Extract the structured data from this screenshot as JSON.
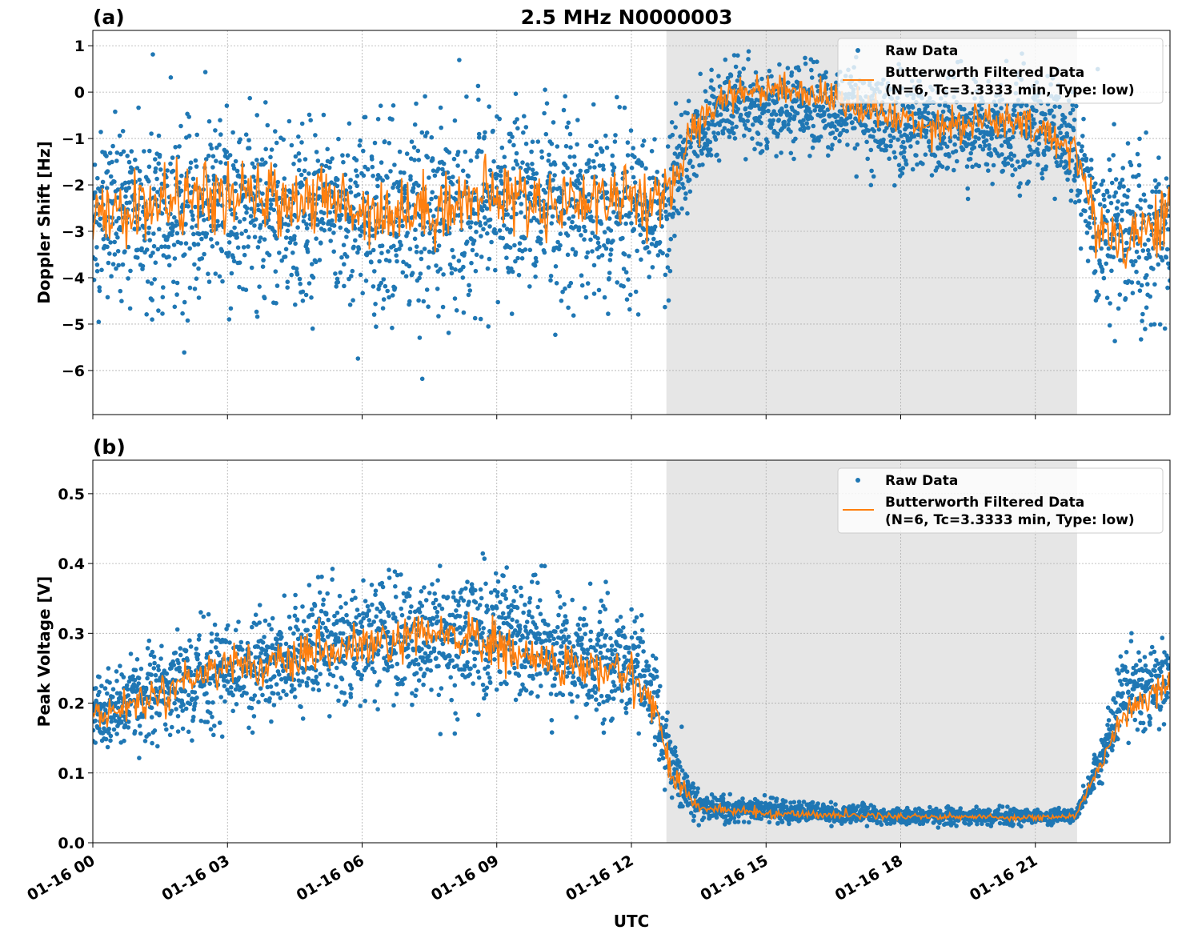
{
  "figure": {
    "title": "2.5 MHz N0000003",
    "xlabel": "UTC",
    "x_tick_labels": [
      "01-16 00",
      "01-16 03",
      "01-16 06",
      "01-16 09",
      "01-16 12",
      "01-16 15",
      "01-16 18",
      "01-16 21"
    ],
    "x_tick_hours": [
      0,
      3,
      6,
      9,
      12,
      15,
      18,
      21
    ],
    "xlim_hours": [
      0,
      24
    ],
    "shaded_interval_hours": [
      12.78,
      21.93
    ],
    "colors": {
      "raw": "#1f77b4",
      "filtered": "#ff7f0e",
      "shade": "#e6e6e6"
    }
  },
  "chart_data": [
    {
      "type": "scatter",
      "panel_label": "(a)",
      "ylabel": "Doppler Shift [Hz]",
      "ylim": [
        -6.95,
        1.33
      ],
      "y_ticks": [
        1,
        0,
        -1,
        -2,
        -3,
        -4,
        -5,
        -6
      ],
      "y_tick_labels": [
        "1",
        "0",
        "−1",
        "−2",
        "−3",
        "−4",
        "−5",
        "−6"
      ],
      "grid": true,
      "legend_placement": "top-right",
      "legend": [
        "Raw Data",
        "Butterworth Filtered Data",
        "(N=6, Tc=3.3333 min, Type: low)"
      ],
      "series": [
        {
          "name": "Butterworth Filtered Data",
          "x_hours": [
            0,
            1,
            2,
            3,
            4,
            5,
            6,
            7,
            8,
            9,
            10,
            11,
            12,
            12.75,
            13.25,
            14,
            15,
            16,
            17,
            18,
            19,
            20,
            21,
            21.9,
            22.3,
            23,
            24
          ],
          "values": [
            -2.8,
            -2.5,
            -2.3,
            -2.3,
            -2.3,
            -2.3,
            -2.5,
            -2.6,
            -2.4,
            -2.2,
            -2.4,
            -2.3,
            -2.2,
            -2.5,
            -1.0,
            -0.1,
            0.1,
            0.0,
            -0.3,
            -0.6,
            -0.7,
            -0.6,
            -0.8,
            -1.2,
            -2.8,
            -3.2,
            -2.6
          ]
        },
        {
          "name": "Raw Data",
          "x_hours": [
            0,
            3,
            6,
            9,
            12,
            12.75,
            13.25,
            14,
            17,
            18,
            21,
            21.9,
            22.3,
            24
          ],
          "upper": [
            -0.7,
            -0.5,
            -0.6,
            -0.3,
            -0.6,
            -0.6,
            0.2,
            0.6,
            0.7,
            0.4,
            0.4,
            0.0,
            -1.2,
            -1.0
          ],
          "lower": [
            -4.6,
            -4.6,
            -4.8,
            -4.6,
            -4.4,
            -4.4,
            -2.5,
            -1.3,
            -1.4,
            -2.0,
            -2.0,
            -2.5,
            -4.8,
            -5.2
          ]
        }
      ]
    },
    {
      "type": "scatter",
      "panel_label": "(b)",
      "ylabel": "Peak Voltage [V]",
      "ylim": [
        0,
        0.548
      ],
      "y_ticks": [
        0,
        0.1,
        0.2,
        0.3,
        0.4,
        0.5
      ],
      "y_tick_labels": [
        "0.0",
        "0.1",
        "0.2",
        "0.3",
        "0.4",
        "0.5"
      ],
      "grid": true,
      "legend_placement": "top-right",
      "legend": [
        "Raw Data",
        "Butterworth Filtered Data",
        "(N=6, Tc=3.3333 min, Type: low)"
      ],
      "series": [
        {
          "name": "Butterworth Filtered Data",
          "x_hours": [
            0,
            1,
            2,
            3,
            4,
            5,
            6,
            7,
            8,
            9,
            10,
            11,
            12,
            12.5,
            12.9,
            13.5,
            15,
            18,
            21,
            21.9,
            22.5,
            23,
            24
          ],
          "values": [
            0.18,
            0.2,
            0.23,
            0.26,
            0.25,
            0.27,
            0.28,
            0.29,
            0.3,
            0.28,
            0.26,
            0.25,
            0.24,
            0.2,
            0.1,
            0.05,
            0.042,
            0.038,
            0.036,
            0.038,
            0.12,
            0.19,
            0.23
          ]
        },
        {
          "name": "Raw Data",
          "x_hours": [
            0,
            3,
            6,
            9,
            12,
            12.5,
            12.9,
            13.5,
            15,
            18,
            21,
            21.9,
            22.5,
            23,
            24
          ],
          "upper": [
            0.24,
            0.33,
            0.38,
            0.4,
            0.33,
            0.28,
            0.16,
            0.07,
            0.065,
            0.05,
            0.05,
            0.05,
            0.16,
            0.28,
            0.3
          ],
          "lower": [
            0.13,
            0.17,
            0.2,
            0.19,
            0.17,
            0.14,
            0.05,
            0.03,
            0.028,
            0.026,
            0.026,
            0.03,
            0.09,
            0.15,
            0.17
          ]
        }
      ]
    }
  ]
}
